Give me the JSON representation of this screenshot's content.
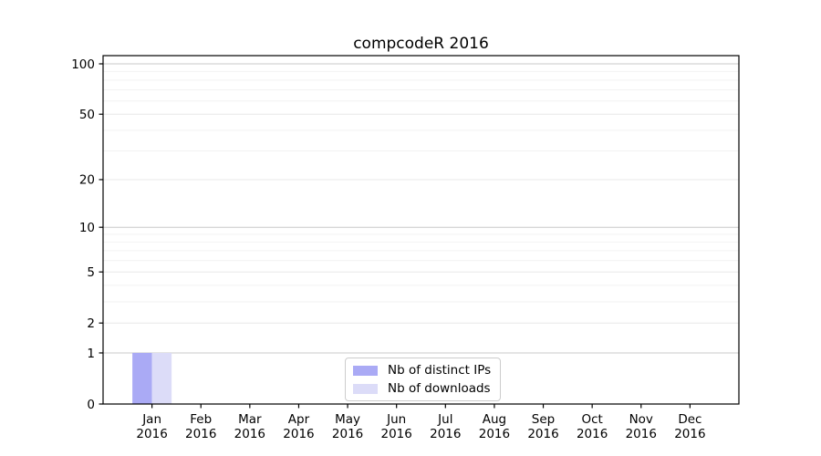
{
  "chart_data": {
    "type": "bar",
    "title": "compcodeR 2016",
    "categories": [
      "Jan 2016",
      "Feb 2016",
      "Mar 2016",
      "Apr 2016",
      "May 2016",
      "Jun 2016",
      "Jul 2016",
      "Aug 2016",
      "Sep 2016",
      "Oct 2016",
      "Nov 2016",
      "Dec 2016"
    ],
    "series": [
      {
        "name": "Nb of distinct IPs",
        "color": "#aaaaf5",
        "values": [
          1,
          0,
          0,
          0,
          0,
          0,
          0,
          0,
          0,
          0,
          0,
          0
        ]
      },
      {
        "name": "Nb of downloads",
        "color": "#dcdcf8",
        "values": [
          1,
          0,
          0,
          0,
          0,
          0,
          0,
          0,
          0,
          0,
          0,
          0
        ]
      }
    ],
    "xlabel": "",
    "ylabel": "",
    "yscale": "log1p",
    "ylim": [
      0,
      100
    ],
    "yticks": [
      0,
      1,
      2,
      5,
      10,
      20,
      50,
      100
    ],
    "yticks_minor": [
      3,
      4,
      6,
      7,
      8,
      9,
      30,
      40,
      60,
      70,
      80,
      90
    ],
    "grid": true,
    "legend_position": "bottom-center"
  }
}
